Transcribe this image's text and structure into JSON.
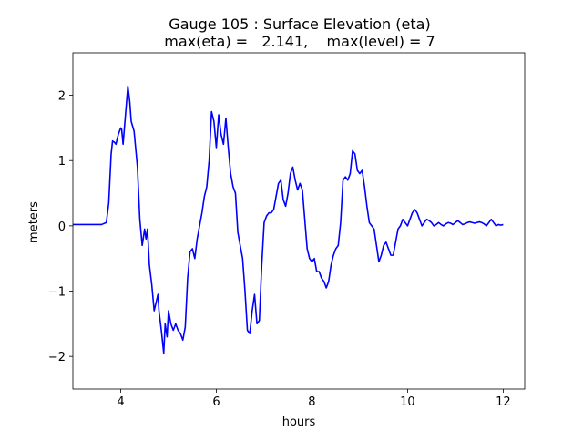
{
  "chart_data": {
    "type": "line",
    "title": "Gauge 105 : Surface Elevation (eta)",
    "subtitle": "max(eta) =   2.141,    max(level) = 7",
    "xlabel": "hours",
    "ylabel": "meters",
    "xlim": [
      3.0,
      12.45
    ],
    "ylim": [
      -2.5,
      2.65
    ],
    "xticks": [
      4,
      6,
      8,
      10,
      12
    ],
    "xtick_labels": [
      "4",
      "6",
      "8",
      "10",
      "12"
    ],
    "yticks": [
      -2,
      -1,
      0,
      1,
      2
    ],
    "ytick_labels": [
      "−2",
      "−1",
      "0",
      "1",
      "2"
    ],
    "grid": false,
    "legend": "none",
    "series": [
      {
        "color": "#0000ff",
        "x": [
          3.0,
          3.3,
          3.6,
          3.7,
          3.75,
          3.8,
          3.83,
          3.87,
          3.9,
          3.95,
          4.0,
          4.02,
          4.05,
          4.1,
          4.15,
          4.19,
          4.22,
          4.28,
          4.35,
          4.4,
          4.45,
          4.5,
          4.53,
          4.56,
          4.6,
          4.65,
          4.7,
          4.78,
          4.8,
          4.85,
          4.9,
          4.93,
          4.97,
          5.0,
          5.05,
          5.1,
          5.15,
          5.2,
          5.25,
          5.3,
          5.35,
          5.4,
          5.45,
          5.5,
          5.55,
          5.6,
          5.65,
          5.7,
          5.75,
          5.8,
          5.85,
          5.9,
          5.95,
          6.0,
          6.05,
          6.1,
          6.15,
          6.2,
          6.25,
          6.3,
          6.35,
          6.4,
          6.45,
          6.5,
          6.55,
          6.6,
          6.65,
          6.7,
          6.75,
          6.8,
          6.85,
          6.9,
          6.95,
          7.0,
          7.05,
          7.1,
          7.15,
          7.2,
          7.25,
          7.3,
          7.35,
          7.4,
          7.45,
          7.5,
          7.55,
          7.6,
          7.65,
          7.7,
          7.75,
          7.8,
          7.85,
          7.9,
          7.95,
          8.0,
          8.05,
          8.1,
          8.15,
          8.2,
          8.25,
          8.3,
          8.35,
          8.4,
          8.45,
          8.5,
          8.55,
          8.6,
          8.65,
          8.7,
          8.75,
          8.8,
          8.85,
          8.9,
          8.95,
          9.0,
          9.05,
          9.1,
          9.15,
          9.2,
          9.25,
          9.3,
          9.35,
          9.4,
          9.45,
          9.5,
          9.55,
          9.6,
          9.65,
          9.7,
          9.75,
          9.8,
          9.85,
          9.9,
          9.95,
          10.0,
          10.05,
          10.1,
          10.15,
          10.2,
          10.25,
          10.3,
          10.35,
          10.4,
          10.45,
          10.5,
          10.55,
          10.6,
          10.65,
          10.7,
          10.75,
          10.8,
          10.85,
          10.9,
          10.95,
          11.0,
          11.05,
          11.1,
          11.15,
          11.2,
          11.25,
          11.3,
          11.35,
          11.4,
          11.45,
          11.5,
          11.55,
          11.6,
          11.65,
          11.7,
          11.75,
          11.8,
          11.85,
          11.9,
          11.95,
          12.0
        ],
        "values": [
          0.02,
          0.02,
          0.02,
          0.05,
          0.35,
          1.1,
          1.3,
          1.28,
          1.25,
          1.4,
          1.5,
          1.48,
          1.25,
          1.7,
          2.14,
          1.9,
          1.6,
          1.45,
          0.9,
          0.1,
          -0.3,
          -0.05,
          -0.2,
          -0.05,
          -0.6,
          -0.9,
          -1.3,
          -1.05,
          -1.3,
          -1.6,
          -1.95,
          -1.5,
          -1.7,
          -1.3,
          -1.5,
          -1.6,
          -1.5,
          -1.6,
          -1.65,
          -1.75,
          -1.55,
          -0.8,
          -0.4,
          -0.35,
          -0.5,
          -0.2,
          0.0,
          0.2,
          0.45,
          0.6,
          1.0,
          1.75,
          1.6,
          1.2,
          1.7,
          1.4,
          1.25,
          1.65,
          1.2,
          0.8,
          0.6,
          0.5,
          -0.1,
          -0.3,
          -0.5,
          -1.0,
          -1.6,
          -1.65,
          -1.3,
          -1.05,
          -1.5,
          -1.45,
          -0.6,
          0.05,
          0.15,
          0.2,
          0.2,
          0.25,
          0.45,
          0.65,
          0.7,
          0.4,
          0.3,
          0.5,
          0.8,
          0.9,
          0.7,
          0.55,
          0.65,
          0.55,
          0.1,
          -0.35,
          -0.5,
          -0.55,
          -0.5,
          -0.7,
          -0.7,
          -0.8,
          -0.85,
          -0.95,
          -0.85,
          -0.6,
          -0.45,
          -0.35,
          -0.3,
          0.05,
          0.7,
          0.75,
          0.7,
          0.8,
          1.15,
          1.1,
          0.85,
          0.8,
          0.85,
          0.6,
          0.3,
          0.05,
          0.0,
          -0.05,
          -0.3,
          -0.55,
          -0.45,
          -0.3,
          -0.25,
          -0.35,
          -0.45,
          -0.45,
          -0.25,
          -0.05,
          0.0,
          0.1,
          0.05,
          0.0,
          0.1,
          0.2,
          0.25,
          0.2,
          0.1,
          0.0,
          0.05,
          0.1,
          0.08,
          0.05,
          0.0,
          0.02,
          0.05,
          0.02,
          0.0,
          0.03,
          0.05,
          0.04,
          0.02,
          0.05,
          0.08,
          0.05,
          0.02,
          0.03,
          0.05,
          0.06,
          0.05,
          0.04,
          0.05,
          0.06,
          0.05,
          0.03,
          0.0,
          0.05,
          0.1,
          0.05,
          0.0,
          0.02,
          0.01,
          0.02
        ]
      }
    ]
  }
}
